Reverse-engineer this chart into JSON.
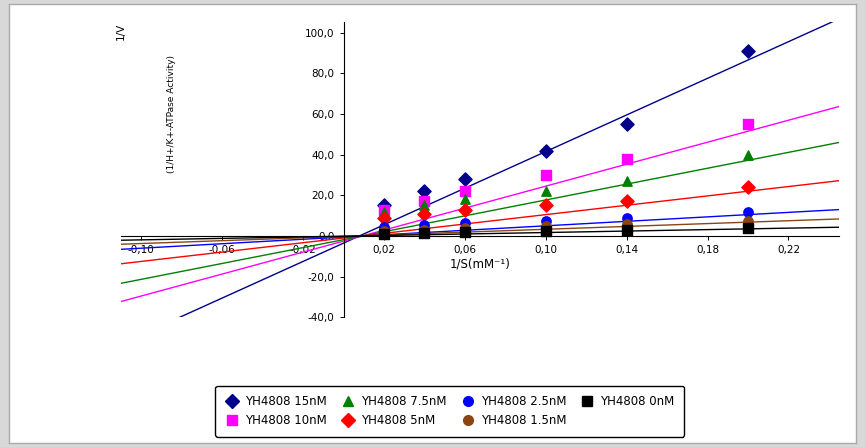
{
  "series": [
    {
      "label": "YH4808 15nM",
      "color": "#00008B",
      "marker": "D",
      "x_data": [
        0.02,
        0.04,
        0.06,
        0.1,
        0.14,
        0.2
      ],
      "y_data": [
        15.0,
        22.0,
        28.0,
        42.0,
        55.0,
        91.0
      ],
      "slope": 450.0,
      "intercept": -3.5
    },
    {
      "label": "YH4808 10nM",
      "color": "#FF00FF",
      "marker": "s",
      "x_data": [
        0.02,
        0.04,
        0.06,
        0.1,
        0.14,
        0.2
      ],
      "y_data": [
        13.0,
        17.0,
        22.0,
        30.0,
        38.0,
        55.0
      ],
      "slope": 270.0,
      "intercept": -2.5
    },
    {
      "label": "YH4808 7.5nM",
      "color": "#008000",
      "marker": "^",
      "x_data": [
        0.02,
        0.04,
        0.06,
        0.1,
        0.14,
        0.2
      ],
      "y_data": [
        12.0,
        15.0,
        18.0,
        22.0,
        27.0,
        40.0
      ],
      "slope": 195.0,
      "intercept": -1.8
    },
    {
      "label": "YH4808 5nM",
      "color": "#FF0000",
      "marker": "D",
      "x_data": [
        0.02,
        0.04,
        0.06,
        0.1,
        0.14,
        0.2
      ],
      "y_data": [
        9.0,
        11.0,
        13.0,
        15.0,
        17.0,
        24.0
      ],
      "slope": 115.0,
      "intercept": -1.0
    },
    {
      "label": "YH4808 2.5nM",
      "color": "#0000FF",
      "marker": "o",
      "x_data": [
        0.02,
        0.04,
        0.06,
        0.1,
        0.14,
        0.2
      ],
      "y_data": [
        4.5,
        5.5,
        6.5,
        7.5,
        9.0,
        12.0
      ],
      "slope": 55.0,
      "intercept": -0.5
    },
    {
      "label": "YH4808 1.5nM",
      "color": "#8B4513",
      "marker": "o",
      "x_data": [
        0.02,
        0.04,
        0.06,
        0.1,
        0.14,
        0.2
      ],
      "y_data": [
        2.5,
        3.0,
        4.0,
        5.0,
        6.0,
        7.5
      ],
      "slope": 35.0,
      "intercept": -0.2
    },
    {
      "label": "YH4808 0nM",
      "color": "#000000",
      "marker": "s",
      "x_data": [
        0.02,
        0.04,
        0.06,
        0.1,
        0.14,
        0.2
      ],
      "y_data": [
        1.0,
        1.5,
        2.0,
        2.5,
        3.0,
        4.0
      ],
      "slope": 18.0,
      "intercept": -0.1
    }
  ],
  "xlim": [
    -0.11,
    0.245
  ],
  "ylim": [
    -40.0,
    105.0
  ],
  "xticks": [
    -0.1,
    -0.06,
    -0.02,
    0.02,
    0.06,
    0.1,
    0.14,
    0.18,
    0.22
  ],
  "yticks": [
    -40.0,
    -20.0,
    0.0,
    20.0,
    40.0,
    60.0,
    80.0,
    100.0
  ],
  "xlabel": "1/S(mM⁻¹)",
  "ylabel_top": "1/V",
  "ylabel_bottom": "(1/H+/K+-ATPase Activity)"
}
